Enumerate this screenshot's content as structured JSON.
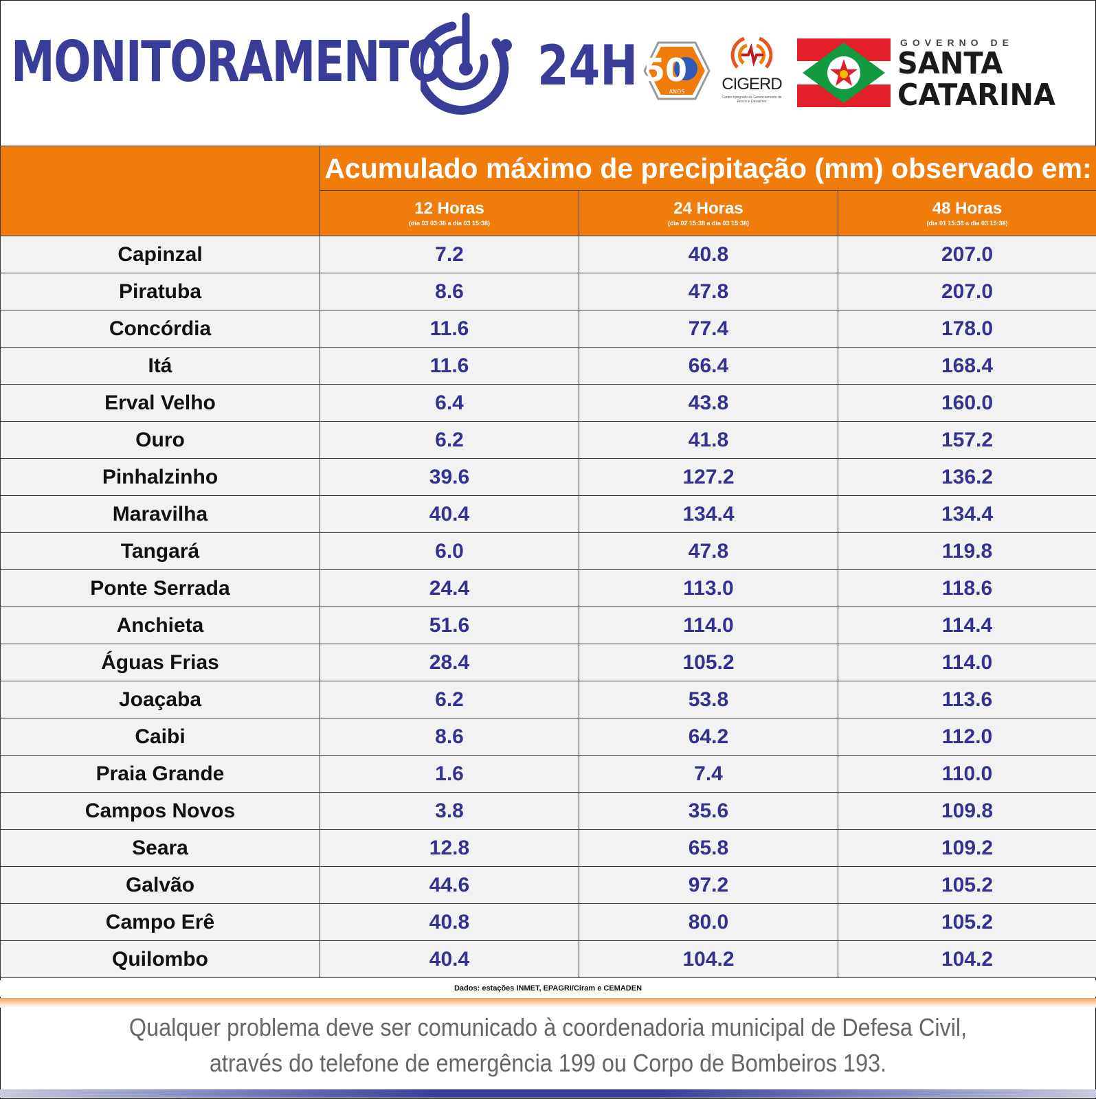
{
  "header": {
    "brand": "MONITORAMENTO",
    "brand_suffix": "24H",
    "badge": {
      "number": "50",
      "label": "ANOS"
    },
    "cigerd": {
      "name": "CIGERD",
      "subtitle": "Centro Integrado de Gerenciamento de Riscos e Desastres"
    },
    "government": {
      "line1": "GOVERNO DE",
      "line2": "SANTA",
      "line3": "CATARINA"
    },
    "colors": {
      "brand_blue": "#3a3d97",
      "accent_orange": "#f07c0c",
      "flag_red": "#e3202a",
      "flag_green": "#119a3f"
    }
  },
  "table": {
    "title": "Acumulado máximo de precipitação (mm) observado em:",
    "columns": [
      {
        "label": "12 Horas",
        "range": "(dia 03 03:38 a dia 03 15:38)"
      },
      {
        "label": "24 Horas",
        "range": "(dia 02 15:38 a dia 03 15:38)"
      },
      {
        "label": "48 Horas",
        "range": "(dia 01 15:38 a dia 03 15:38)"
      }
    ],
    "rows": [
      {
        "city": "Capinzal",
        "h12": "7.2",
        "h24": "40.8",
        "h48": "207.0"
      },
      {
        "city": "Piratuba",
        "h12": "8.6",
        "h24": "47.8",
        "h48": "207.0"
      },
      {
        "city": "Concórdia",
        "h12": "11.6",
        "h24": "77.4",
        "h48": "178.0"
      },
      {
        "city": "Itá",
        "h12": "11.6",
        "h24": "66.4",
        "h48": "168.4"
      },
      {
        "city": "Erval Velho",
        "h12": "6.4",
        "h24": "43.8",
        "h48": "160.0"
      },
      {
        "city": "Ouro",
        "h12": "6.2",
        "h24": "41.8",
        "h48": "157.2"
      },
      {
        "city": "Pinhalzinho",
        "h12": "39.6",
        "h24": "127.2",
        "h48": "136.2"
      },
      {
        "city": "Maravilha",
        "h12": "40.4",
        "h24": "134.4",
        "h48": "134.4"
      },
      {
        "city": "Tangará",
        "h12": "6.0",
        "h24": "47.8",
        "h48": "119.8"
      },
      {
        "city": "Ponte Serrada",
        "h12": "24.4",
        "h24": "113.0",
        "h48": "118.6"
      },
      {
        "city": "Anchieta",
        "h12": "51.6",
        "h24": "114.0",
        "h48": "114.4"
      },
      {
        "city": "Águas Frias",
        "h12": "28.4",
        "h24": "105.2",
        "h48": "114.0"
      },
      {
        "city": "Joaçaba",
        "h12": "6.2",
        "h24": "53.8",
        "h48": "113.6"
      },
      {
        "city": "Caibi",
        "h12": "8.6",
        "h24": "64.2",
        "h48": "112.0"
      },
      {
        "city": "Praia Grande",
        "h12": "1.6",
        "h24": "7.4",
        "h48": "110.0"
      },
      {
        "city": "Campos Novos",
        "h12": "3.8",
        "h24": "35.6",
        "h48": "109.8"
      },
      {
        "city": "Seara",
        "h12": "12.8",
        "h24": "65.8",
        "h48": "109.2"
      },
      {
        "city": "Galvão",
        "h12": "44.6",
        "h24": "97.2",
        "h48": "105.2"
      },
      {
        "city": "Campo Erê",
        "h12": "40.8",
        "h24": "80.0",
        "h48": "105.2"
      },
      {
        "city": "Quilombo",
        "h12": "40.4",
        "h24": "104.2",
        "h48": "104.2"
      }
    ]
  },
  "source": "Dados: estações INMET, EPAGRI/Ciram e CEMADEN",
  "footer": {
    "line1": "Qualquer problema deve ser comunicado à coordenadoria municipal de Defesa Civil,",
    "line2": "através do telefone de emergência 199 ou Corpo de Bombeiros 193."
  }
}
